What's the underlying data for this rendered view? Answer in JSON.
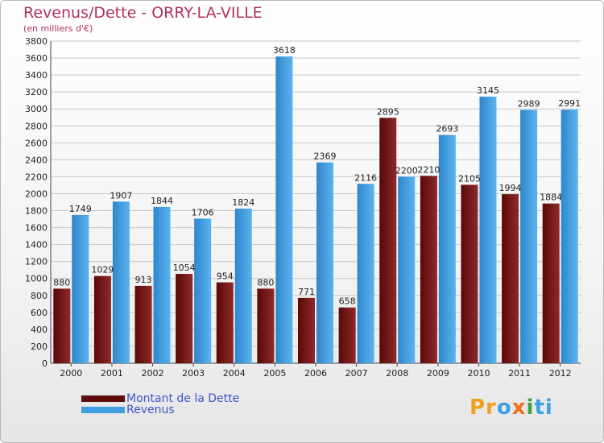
{
  "chart_data": {
    "type": "bar",
    "title": "Revenus/Dette - ORRY-LA-VILLE",
    "subtitle": "(en milliers d'€)",
    "categories": [
      "2000",
      "2001",
      "2002",
      "2003",
      "2004",
      "2005",
      "2006",
      "2007",
      "2008",
      "2009",
      "2010",
      "2011",
      "2012"
    ],
    "series": [
      {
        "name": "Montant de la Dette",
        "color": "#7a1a1a",
        "values": [
          880,
          1029,
          913,
          1054,
          954,
          880,
          771,
          658,
          2895,
          2210,
          2105,
          1994,
          1884
        ],
        "labels": [
          "880",
          "1029",
          "913",
          "1054",
          "954",
          "880",
          "771",
          "658",
          "2895",
          "2210",
          "2105",
          "1994",
          "1884"
        ]
      },
      {
        "name": "Revenus",
        "color": "#3f9fe0",
        "values": [
          1749,
          1907,
          1844,
          1706,
          1824,
          3618,
          2369,
          2116,
          2200,
          2693,
          3145,
          2989,
          2991
        ],
        "labels": [
          "1749",
          "1907",
          "1844",
          "1706",
          "1824",
          "3618",
          "2369",
          "2116",
          "2200",
          "2693",
          "3145",
          "2989",
          "2991"
        ]
      }
    ],
    "ylim": [
      0,
      3800
    ],
    "yticks": [
      0,
      200,
      400,
      600,
      800,
      1000,
      1200,
      1400,
      1600,
      1800,
      2000,
      2200,
      2400,
      2600,
      2800,
      3000,
      3200,
      3400,
      3600,
      3800
    ],
    "grid": true,
    "legend_position": "bottom-left"
  },
  "legend": {
    "dette_label": "Montant de la Dette",
    "revenus_label": "Revenus"
  },
  "brand": {
    "p1": "Pr",
    "p2": "o",
    "p3": "x",
    "p4": "i",
    "p5": "ti"
  }
}
